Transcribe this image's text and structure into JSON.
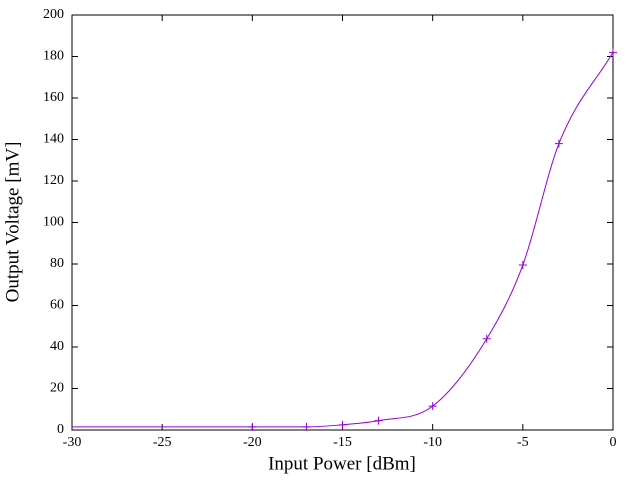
{
  "chart_data": {
    "type": "line",
    "xlabel": "Input Power [dBm]",
    "ylabel": "Output Voltage [mV]",
    "x": [
      -30,
      -20,
      -17,
      -15,
      -13,
      -10,
      -7,
      -5,
      -3,
      0
    ],
    "values": [
      1.5,
      1.5,
      1.5,
      2.5,
      4.5,
      11.5,
      44,
      79.5,
      138,
      182
    ],
    "markers": [
      false,
      true,
      true,
      true,
      true,
      true,
      true,
      true,
      true,
      true
    ],
    "color": "#9400d3",
    "xlim": [
      -30,
      0
    ],
    "xticks": [
      -30,
      -25,
      -20,
      -15,
      -10,
      -5,
      0
    ],
    "ylim": [
      0,
      200
    ],
    "yticks": [
      0,
      20,
      40,
      60,
      80,
      100,
      120,
      140,
      160,
      180,
      200
    ],
    "grid": false
  }
}
